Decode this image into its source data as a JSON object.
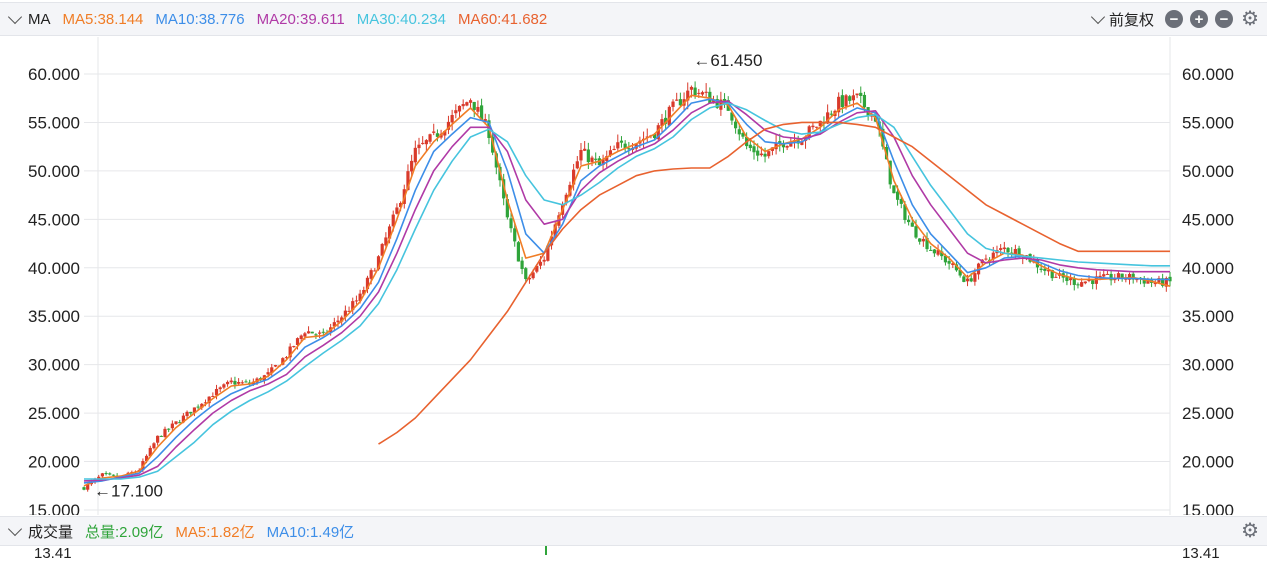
{
  "header": {
    "indicator_label": "MA",
    "ma_items": [
      {
        "label": "MA5:38.144",
        "color": "#f07d26"
      },
      {
        "label": "MA10:38.776",
        "color": "#3d8ee8"
      },
      {
        "label": "MA20:39.611",
        "color": "#b03aa6"
      },
      {
        "label": "MA30:40.234",
        "color": "#46c4de"
      },
      {
        "label": "MA60:41.682",
        "color": "#e8622f"
      }
    ],
    "adjust_label": "前复权"
  },
  "volume_bar": {
    "label": "成交量",
    "items": [
      {
        "label": "总量:2.09亿",
        "color": "#2fa43a"
      },
      {
        "label": "MA5:1.82亿",
        "color": "#f07d26"
      },
      {
        "label": "MA10:1.49亿",
        "color": "#3d8ee8"
      }
    ],
    "axis_top_label_left": "13.41",
    "axis_top_label_right": "13.41"
  },
  "chart_data": {
    "type": "line",
    "title": "",
    "xlabel": "",
    "ylabel": "",
    "ylim": [
      15,
      61.45
    ],
    "ytick_labels": [
      "60.000",
      "55.000",
      "50.000",
      "45.000",
      "40.000",
      "35.000",
      "30.000",
      "25.000",
      "20.000",
      "15.000"
    ],
    "yticks": [
      60,
      55,
      50,
      45,
      40,
      35,
      30,
      25,
      20,
      15
    ],
    "annotations": [
      {
        "label": "←61.450",
        "value": 61.45
      },
      {
        "label": "←17.100",
        "value": 17.1
      }
    ],
    "x": [
      0,
      10,
      20,
      30,
      40,
      50,
      60,
      70,
      80,
      90,
      100,
      110,
      120,
      130,
      140,
      150,
      160,
      170,
      180,
      190,
      200,
      210,
      220,
      230,
      240,
      250,
      260,
      270,
      280,
      290,
      300,
      310,
      320,
      330,
      340,
      350,
      360,
      370,
      380,
      390,
      400,
      410,
      420,
      430,
      440,
      450,
      460,
      470,
      480,
      490,
      500,
      510,
      520,
      530,
      540,
      550,
      560,
      570,
      580,
      590
    ],
    "price": [
      17.3,
      18.6,
      18.3,
      19.2,
      22.5,
      24.0,
      25.5,
      27.0,
      28.2,
      28.0,
      29.0,
      31.0,
      33.5,
      33.0,
      35.0,
      37.0,
      41.0,
      46.0,
      52.0,
      53.5,
      55.5,
      57.5,
      54.0,
      45.0,
      38.5,
      41.0,
      47.0,
      52.0,
      50.5,
      52.5,
      53.0,
      54.0,
      56.5,
      58.5,
      57.5,
      56.5,
      52.5,
      51.5,
      53.0,
      53.5,
      55.0,
      57.0,
      57.5,
      55.5,
      47.5,
      44.0,
      42.0,
      40.5,
      38.5,
      41.0,
      42.0,
      41.5,
      40.0,
      39.0,
      38.5,
      38.8,
      39.0,
      39.0,
      38.5,
      38.5
    ],
    "series": [
      {
        "name": "MA5",
        "color": "#f07d26",
        "values": [
          17.5,
          18.3,
          18.5,
          19.0,
          21.5,
          23.5,
          25.0,
          26.5,
          27.8,
          28.0,
          28.8,
          30.5,
          32.8,
          33.0,
          34.5,
          36.5,
          40.0,
          45.0,
          50.5,
          53.0,
          54.8,
          56.5,
          54.5,
          47.0,
          41.0,
          41.5,
          46.0,
          50.5,
          51.0,
          52.0,
          52.8,
          53.8,
          55.8,
          57.8,
          57.5,
          56.8,
          53.5,
          52.0,
          52.8,
          53.3,
          54.5,
          56.3,
          57.0,
          55.5,
          49.0,
          45.0,
          42.5,
          41.0,
          39.0,
          40.5,
          41.5,
          41.3,
          40.2,
          39.3,
          38.8,
          38.8,
          38.9,
          39.0,
          38.6,
          38.1
        ]
      },
      {
        "name": "MA10",
        "color": "#3d8ee8",
        "values": [
          17.8,
          18.0,
          18.4,
          18.8,
          20.5,
          22.5,
          24.3,
          25.8,
          27.0,
          27.8,
          28.5,
          29.8,
          31.8,
          32.8,
          34.0,
          35.8,
          38.5,
          43.0,
          48.0,
          52.0,
          53.8,
          55.5,
          55.0,
          50.0,
          43.5,
          41.5,
          44.5,
          49.0,
          50.5,
          51.5,
          52.5,
          53.2,
          55.0,
          57.0,
          57.4,
          57.0,
          54.8,
          53.0,
          52.8,
          53.0,
          54.0,
          55.5,
          56.5,
          56.0,
          51.0,
          46.5,
          43.5,
          41.5,
          39.5,
          40.0,
          41.0,
          41.2,
          40.5,
          39.7,
          39.2,
          39.0,
          38.9,
          38.9,
          38.8,
          38.8
        ]
      },
      {
        "name": "MA20",
        "color": "#b03aa6",
        "values": [
          18.0,
          18.1,
          18.3,
          18.6,
          19.5,
          21.5,
          23.3,
          25.0,
          26.3,
          27.3,
          28.0,
          29.0,
          30.8,
          32.0,
          33.3,
          35.0,
          37.5,
          41.5,
          46.0,
          50.0,
          52.5,
          54.5,
          54.5,
          52.0,
          47.0,
          44.5,
          45.0,
          48.0,
          49.8,
          51.0,
          52.0,
          52.8,
          54.2,
          56.0,
          57.0,
          57.2,
          55.8,
          54.2,
          53.5,
          53.3,
          53.8,
          55.0,
          56.0,
          56.2,
          53.5,
          49.5,
          46.5,
          44.0,
          41.5,
          40.5,
          40.8,
          41.0,
          40.8,
          40.3,
          40.0,
          39.8,
          39.7,
          39.6,
          39.6,
          39.6
        ]
      },
      {
        "name": "MA30",
        "color": "#46c4de",
        "values": [
          18.2,
          18.2,
          18.2,
          18.4,
          19.0,
          20.5,
          22.0,
          23.8,
          25.2,
          26.3,
          27.2,
          28.3,
          29.8,
          31.2,
          32.5,
          34.0,
          36.3,
          39.8,
          44.0,
          48.0,
          51.0,
          53.5,
          54.3,
          53.0,
          49.5,
          47.0,
          46.5,
          47.5,
          48.8,
          50.3,
          51.5,
          52.3,
          53.5,
          55.3,
          56.5,
          57.0,
          56.3,
          55.2,
          54.2,
          53.8,
          54.0,
          54.8,
          55.5,
          55.8,
          54.5,
          51.5,
          48.5,
          46.0,
          43.5,
          42.0,
          41.5,
          41.2,
          41.0,
          40.8,
          40.6,
          40.5,
          40.4,
          40.3,
          40.2,
          40.2
        ]
      },
      {
        "name": "MA60",
        "color": "#e8622f",
        "values": [
          null,
          null,
          null,
          null,
          null,
          null,
          null,
          null,
          null,
          null,
          null,
          null,
          null,
          null,
          null,
          null,
          21.8,
          23.0,
          24.5,
          26.5,
          28.5,
          30.5,
          33.0,
          35.5,
          38.5,
          41.5,
          44.0,
          46.0,
          47.5,
          48.5,
          49.5,
          50.0,
          50.2,
          50.3,
          50.3,
          51.5,
          53.0,
          54.3,
          54.8,
          55.0,
          55.0,
          55.0,
          54.8,
          54.5,
          53.5,
          52.5,
          51.0,
          49.5,
          48.0,
          46.5,
          45.5,
          44.5,
          43.5,
          42.5,
          41.7,
          41.7,
          41.7,
          41.7,
          41.7,
          41.7
        ]
      }
    ]
  }
}
